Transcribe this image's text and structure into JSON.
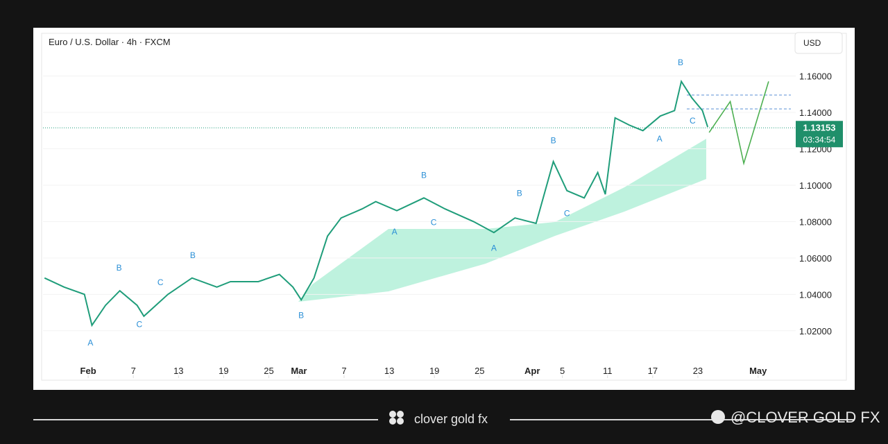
{
  "chart_data": {
    "type": "line",
    "title": "Euro / U.S. Dollar · 4h · FXCM",
    "currency": "USD",
    "xlim": [
      26,
      126
    ],
    "xticks": [
      {
        "value": 32,
        "label": "Feb"
      },
      {
        "value": 38,
        "label": "7"
      },
      {
        "value": 44,
        "label": "13"
      },
      {
        "value": 50,
        "label": "19"
      },
      {
        "value": 56,
        "label": "25"
      },
      {
        "value": 60,
        "label": "Mar"
      },
      {
        "value": 66,
        "label": "7"
      },
      {
        "value": 72,
        "label": "13"
      },
      {
        "value": 78,
        "label": "19"
      },
      {
        "value": 84,
        "label": "25"
      },
      {
        "value": 91,
        "label": "Apr"
      },
      {
        "value": 95,
        "label": "5"
      },
      {
        "value": 101,
        "label": "11"
      },
      {
        "value": 107,
        "label": "17"
      },
      {
        "value": 113,
        "label": "23"
      },
      {
        "value": 121,
        "label": "May"
      }
    ],
    "ylim": [
      0.994,
      1.185
    ],
    "yticks": [
      {
        "value": 1.02,
        "label": "1.02000"
      },
      {
        "value": 1.04,
        "label": "1.04000"
      },
      {
        "value": 1.06,
        "label": "1.06000"
      },
      {
        "value": 1.08,
        "label": "1.08000"
      },
      {
        "value": 1.1,
        "label": "1.10000"
      },
      {
        "value": 1.12,
        "label": "1.12000"
      },
      {
        "value": 1.14,
        "label": "1.14000"
      },
      {
        "value": 1.16,
        "label": "1.16000"
      }
    ],
    "series": [
      {
        "color": "#1f9d7a",
        "x": [
          26.2,
          28.8,
          31.5,
          32.5,
          34.3,
          36.2,
          38.5,
          39.4,
          42.6,
          45.8,
          49.1,
          50.9,
          54.6,
          57.4,
          59.2,
          60.3,
          62,
          63.8,
          65.6,
          68.4,
          70.2,
          73,
          76.6,
          79.4,
          83.2,
          85.9,
          88.7,
          91.5,
          93.8,
          95.6,
          97.9,
          99.7,
          100.7,
          102,
          103.9,
          105.7,
          108,
          109.9,
          110.8,
          112.2,
          113.6,
          114.3
        ],
        "values": [
          1.049,
          1.044,
          1.04,
          1.023,
          1.034,
          1.042,
          1.034,
          1.028,
          1.04,
          1.049,
          1.044,
          1.047,
          1.047,
          1.051,
          1.044,
          1.037,
          1.049,
          1.072,
          1.082,
          1.087,
          1.091,
          1.086,
          1.093,
          1.087,
          1.08,
          1.074,
          1.082,
          1.079,
          1.113,
          1.097,
          1.093,
          1.107,
          1.095,
          1.137,
          1.133,
          1.13,
          1.138,
          1.141,
          1.157,
          1.148,
          1.141,
          1.132
        ]
      },
      {
        "color": "#4caf50",
        "x": [
          114.5,
          117.3,
          119.1,
          122.4
        ],
        "values": [
          1.129,
          1.146,
          1.112,
          1.157
        ]
      }
    ],
    "annotations": [
      {
        "text": "A",
        "x": 32.3,
        "y": 1.012
      },
      {
        "text": "B",
        "x": 36.1,
        "y": 1.053
      },
      {
        "text": "C",
        "x": 38.8,
        "y": 1.022
      },
      {
        "text": "C",
        "x": 41.6,
        "y": 1.045
      },
      {
        "text": "B",
        "x": 45.9,
        "y": 1.06
      },
      {
        "text": "B",
        "x": 60.3,
        "y": 1.027
      },
      {
        "text": "A",
        "x": 72.7,
        "y": 1.073
      },
      {
        "text": "B",
        "x": 76.6,
        "y": 1.104
      },
      {
        "text": "C",
        "x": 77.9,
        "y": 1.078
      },
      {
        "text": "A",
        "x": 85.9,
        "y": 1.064
      },
      {
        "text": "B",
        "x": 89.3,
        "y": 1.094
      },
      {
        "text": "B",
        "x": 93.8,
        "y": 1.123
      },
      {
        "text": "C",
        "x": 95.6,
        "y": 1.083
      },
      {
        "text": "A",
        "x": 107.9,
        "y": 1.124
      },
      {
        "text": "B",
        "x": 110.7,
        "y": 1.166
      },
      {
        "text": "C",
        "x": 112.3,
        "y": 1.134
      }
    ],
    "last_price": 1.13153,
    "countdown": "03:34:54"
  },
  "footer": {
    "brand": "clover gold fx",
    "handle": "@CLOVER GOLD FX"
  }
}
